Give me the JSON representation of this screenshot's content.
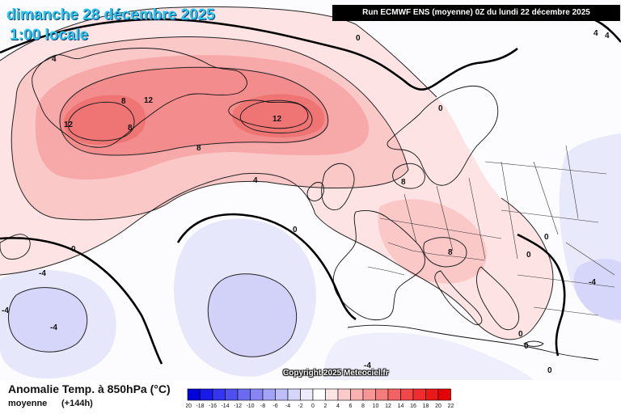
{
  "header": {
    "date_title": "dimanche 28 décembre 2025",
    "time_title": "1:00 locale",
    "run_info": "Run ECMWF ENS (moyenne) 0Z du lundi 22 décembre 2025"
  },
  "footer": {
    "variable_title": "Anomalie Temp. à 850hPa (°C)",
    "statistic": "moyenne",
    "lead_time": "(+144h)",
    "copyright": "Copyright 2025 Meteociel.fr"
  },
  "map_labels": [
    {
      "id": "contour-label-0-north-atlantic",
      "text": "0"
    },
    {
      "id": "contour-label-4-greenland-west",
      "text": "4"
    },
    {
      "id": "contour-label-8-greenland",
      "text": "8"
    },
    {
      "id": "contour-label-12-greenland-north",
      "text": "12"
    },
    {
      "id": "contour-label-12-greenland-south",
      "text": "12"
    },
    {
      "id": "contour-label-8-greenland-south",
      "text": "8"
    },
    {
      "id": "contour-label-12-iceland",
      "text": "12"
    },
    {
      "id": "contour-label-8-atlantic",
      "text": "8"
    },
    {
      "id": "contour-label-4-atlantic",
      "text": "4"
    },
    {
      "id": "contour-label-0-norway",
      "text": "0"
    },
    {
      "id": "contour-label-8-north-sea",
      "text": "8"
    },
    {
      "id": "contour-label-0-mid-atlantic",
      "text": "0"
    },
    {
      "id": "contour-label-0-west-atlantic",
      "text": "0"
    },
    {
      "id": "contour-label-8-alps",
      "text": "8"
    },
    {
      "id": "contour-label-0-balkans-north",
      "text": "0"
    },
    {
      "id": "contour-label-0-balkans",
      "text": "0"
    },
    {
      "id": "contour-label-neg4-atlantic-west",
      "text": "-4"
    },
    {
      "id": "contour-label-neg4-atlantic-sw",
      "text": "-4"
    },
    {
      "id": "contour-label-neg4-atlantic-south",
      "text": "-4"
    },
    {
      "id": "contour-label-neg4-sahara",
      "text": "-4"
    },
    {
      "id": "contour-label-neg4-east",
      "text": "-4"
    },
    {
      "id": "contour-label-0-greece",
      "text": "0"
    },
    {
      "id": "contour-label-0-aegean",
      "text": "0"
    },
    {
      "id": "contour-label-0-crete",
      "text": "0"
    },
    {
      "id": "contour-label-4-northeast-a",
      "text": "4"
    },
    {
      "id": "contour-label-4-northeast-b",
      "text": "4"
    }
  ],
  "color_scale": {
    "ticks": [
      "-20",
      "-18",
      "-16",
      "-14",
      "-12",
      "-10",
      "-8",
      "-6",
      "-4",
      "-2",
      "0",
      "2",
      "4",
      "6",
      "8",
      "10",
      "12",
      "14",
      "16",
      "18",
      "20",
      "22"
    ],
    "colors": [
      "#0000d8",
      "#1a1ae6",
      "#3535ee",
      "#5050f0",
      "#6b6bf2",
      "#8686f4",
      "#a2a2f6",
      "#bdbdf8",
      "#d6d6fa",
      "#ececfc",
      "#ffffff",
      "#fde4e4",
      "#fbcaca",
      "#f9b0b0",
      "#f79696",
      "#f57c7c",
      "#f26262",
      "#f04848",
      "#ee2e2e",
      "#ea1818",
      "#e60000"
    ]
  }
}
